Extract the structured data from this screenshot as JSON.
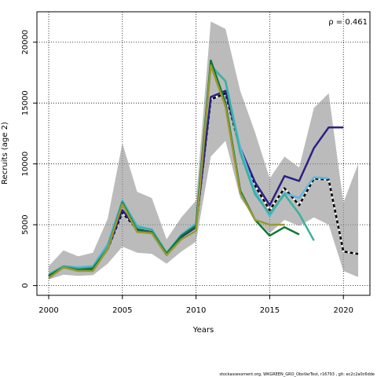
{
  "chart_data": {
    "type": "line",
    "xlabel": "Years",
    "ylabel": "Recruits (age 2)",
    "annotation": "ρ = 0.461",
    "xlim": [
      1999.2,
      2021.8
    ],
    "ylim": [
      -800,
      22500
    ],
    "xticks": [
      2000,
      2005,
      2010,
      2015,
      2020
    ],
    "yticks": [
      0,
      5000,
      10000,
      15000,
      20000
    ],
    "grid": true,
    "band": {
      "x": [
        2000,
        2001,
        2002,
        2003,
        2004,
        2005,
        2006,
        2007,
        2008,
        2009,
        2010,
        2011,
        2012,
        2013,
        2014,
        2015,
        2016,
        2017,
        2018,
        2019,
        2020,
        2021
      ],
      "upper": [
        1600,
        2900,
        2400,
        2700,
        5500,
        11700,
        7700,
        7200,
        3800,
        5600,
        7000,
        21700,
        21100,
        16000,
        12600,
        8800,
        10600,
        9700,
        14600,
        15800,
        6800,
        10000
      ],
      "lower": [
        500,
        900,
        800,
        850,
        1800,
        3200,
        2700,
        2600,
        1800,
        2800,
        3600,
        10600,
        11900,
        7200,
        5500,
        4300,
        5400,
        4900,
        5600,
        5000,
        1200,
        700
      ]
    },
    "series": [
      {
        "color": "#000000",
        "dashed": true,
        "width": 2,
        "x": [
          2000,
          2001,
          2002,
          2003,
          2004,
          2005,
          2006,
          2007,
          2008,
          2009,
          2010,
          2011,
          2012,
          2013,
          2014,
          2015,
          2016,
          2017,
          2018,
          2019,
          2020,
          2021
        ],
        "values": [
          800,
          1500,
          1300,
          1300,
          3000,
          6000,
          4600,
          4400,
          2600,
          4000,
          4800,
          15300,
          15800,
          11200,
          8200,
          6200,
          8000,
          6600,
          8800,
          8700,
          2800,
          2600
        ]
      },
      {
        "color": "#2b2185",
        "dashed": false,
        "width": 2,
        "x": [
          2000,
          2001,
          2002,
          2003,
          2004,
          2005,
          2006,
          2007,
          2008,
          2009,
          2010,
          2011,
          2012,
          2013,
          2014,
          2015,
          2016,
          2017,
          2018,
          2019,
          2020
        ],
        "values": [
          800,
          1500,
          1300,
          1300,
          3000,
          6200,
          4600,
          4400,
          2600,
          4000,
          4800,
          15500,
          16000,
          11300,
          8500,
          6600,
          9000,
          8600,
          11300,
          13000,
          13000
        ]
      },
      {
        "color": "#5bb8e0",
        "dashed": false,
        "width": 2,
        "x": [
          2000,
          2001,
          2002,
          2003,
          2004,
          2005,
          2006,
          2007,
          2008,
          2009,
          2010,
          2011,
          2012,
          2013,
          2014,
          2015,
          2016,
          2017,
          2018,
          2019
        ],
        "values": [
          900,
          1600,
          1500,
          1600,
          3400,
          7000,
          4900,
          4600,
          2700,
          4200,
          5100,
          18000,
          16800,
          11300,
          7800,
          5700,
          7600,
          7200,
          8900,
          8800
        ]
      },
      {
        "color": "#3ab09e",
        "dashed": false,
        "width": 2,
        "x": [
          2000,
          2001,
          2002,
          2003,
          2004,
          2005,
          2006,
          2007,
          2008,
          2009,
          2010,
          2011,
          2012,
          2013,
          2014,
          2015,
          2016,
          2017,
          2018
        ],
        "values": [
          900,
          1600,
          1400,
          1500,
          3200,
          6900,
          4800,
          4600,
          2700,
          4100,
          5000,
          18100,
          16800,
          10900,
          7500,
          5900,
          7500,
          5900,
          3700
        ]
      },
      {
        "color": "#117733",
        "dashed": false,
        "width": 2,
        "x": [
          2000,
          2001,
          2002,
          2003,
          2004,
          2005,
          2006,
          2007,
          2008,
          2009,
          2010,
          2011,
          2012,
          2013,
          2014,
          2015,
          2016,
          2017
        ],
        "values": [
          800,
          1500,
          1300,
          1400,
          3000,
          6800,
          4500,
          4400,
          2600,
          4100,
          4900,
          18500,
          15000,
          7800,
          5400,
          4100,
          4800,
          4200
        ]
      },
      {
        "color": "#999933",
        "dashed": false,
        "width": 2,
        "x": [
          2000,
          2001,
          2002,
          2003,
          2004,
          2005,
          2006,
          2007,
          2008,
          2009,
          2010,
          2011,
          2012,
          2013,
          2014,
          2015,
          2016
        ],
        "values": [
          600,
          1500,
          1200,
          1200,
          3000,
          6700,
          4400,
          4300,
          2500,
          3800,
          4500,
          18100,
          14700,
          7600,
          5400,
          5000,
          5000
        ]
      }
    ]
  },
  "footer": "stockassessment.org, WKGREEN_GRO_ObsVarTest, r16793 , git: ec2c2a0c6dde"
}
